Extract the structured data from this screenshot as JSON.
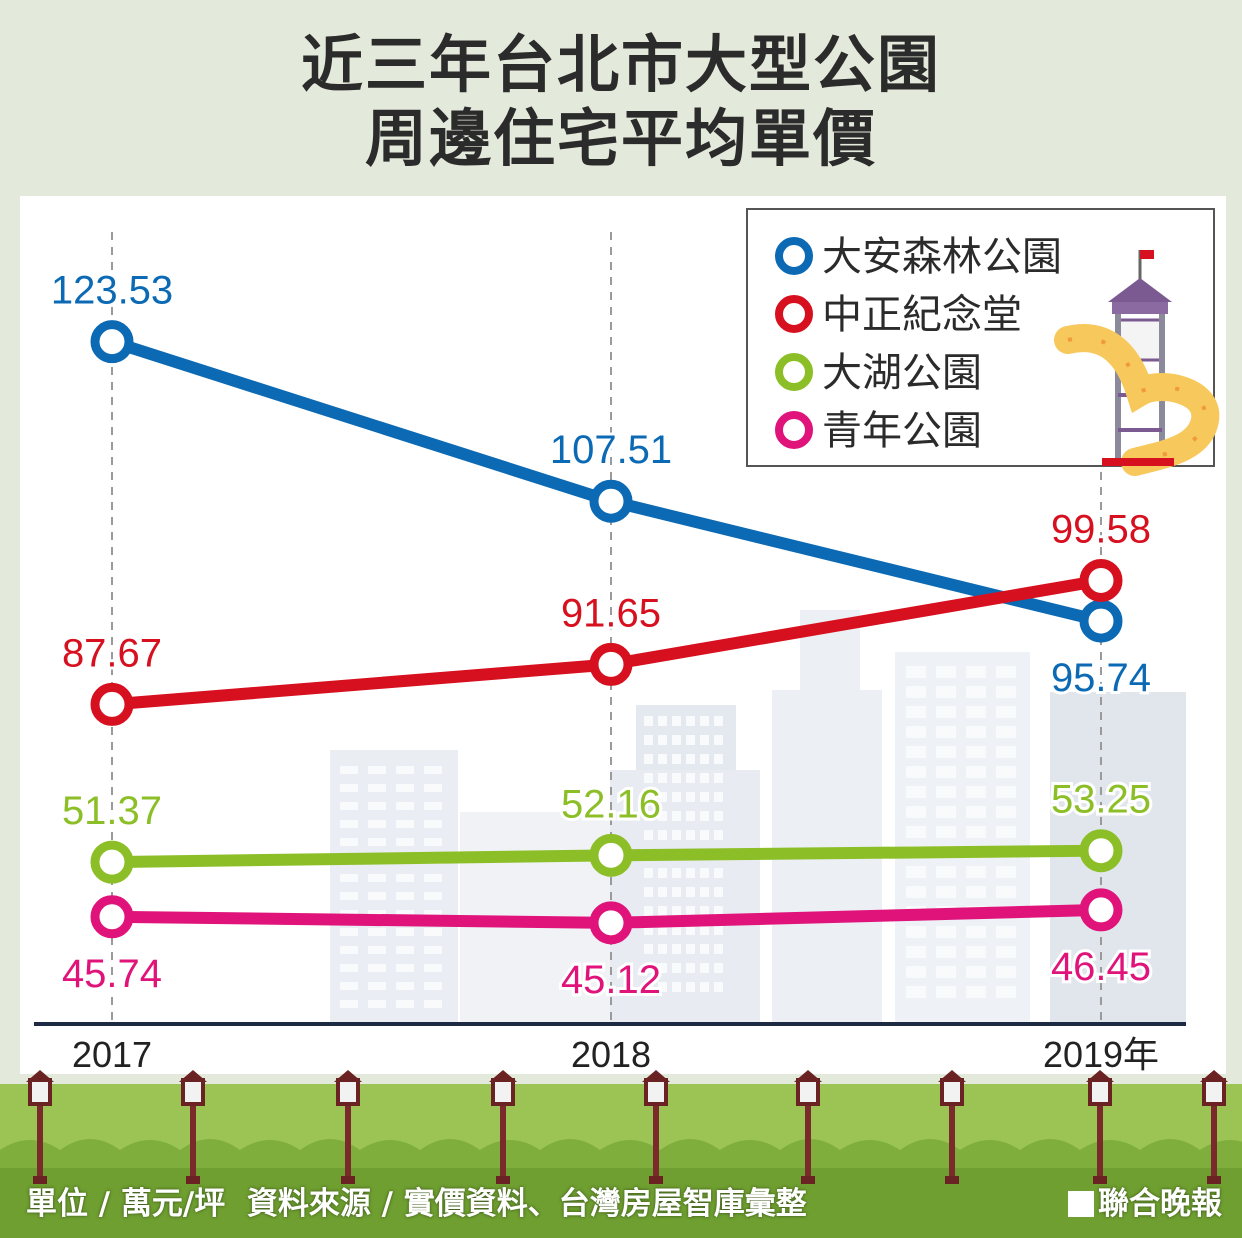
{
  "title": {
    "line1": "近三年台北市大型公園",
    "line2": "周邊住宅平均單價"
  },
  "footer": {
    "note": "單位 / 萬元/坪  資料來源 / 實價資料、台灣房屋智庫彙整",
    "credit": "聯合晚報"
  },
  "colors": {
    "background": "#e4eadb",
    "blue": "#0c6ab4",
    "red": "#d7101f",
    "green": "#8cbf27",
    "magenta": "#e0137b",
    "grass": "#9cc455"
  },
  "chart_data": {
    "type": "line",
    "title": "近三年台北市大型公園周邊住宅平均單價",
    "categories": [
      "2017",
      "2018",
      "2019年"
    ],
    "series": [
      {
        "name": "大安森林公園",
        "color": "#0c6ab4",
        "values": [
          123.53,
          107.51,
          95.74
        ],
        "labels": [
          "123.53",
          "107.51",
          "95.74"
        ]
      },
      {
        "name": "中正紀念堂",
        "color": "#d7101f",
        "values": [
          87.67,
          91.65,
          99.58
        ],
        "labels": [
          "87.67",
          "91.65",
          "99.58"
        ]
      },
      {
        "name": "大湖公園",
        "color": "#8cbf27",
        "values": [
          51.37,
          52.16,
          53.25
        ],
        "labels": [
          "51.37",
          "52.16",
          "53.25"
        ]
      },
      {
        "name": "青年公園",
        "color": "#e0137b",
        "values": [
          45.74,
          45.12,
          46.45
        ],
        "labels": [
          "45.74",
          "45.12",
          "46.45"
        ]
      }
    ],
    "legend": "top-right",
    "grid": false
  }
}
